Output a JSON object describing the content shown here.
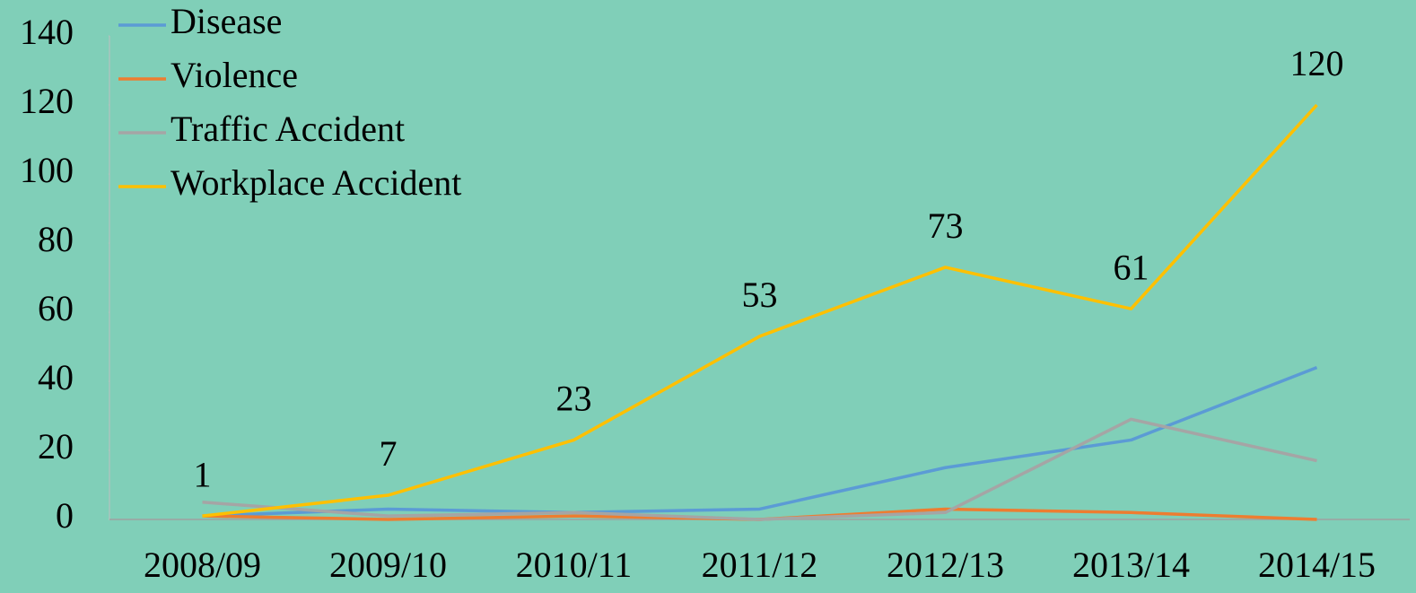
{
  "chart_data": {
    "type": "line",
    "categories": [
      "2008/09",
      "2009/10",
      "2010/11",
      "2011/12",
      "2012/13",
      "2013/14",
      "2014/15"
    ],
    "series": [
      {
        "name": "Disease",
        "color": "#5b9bd5",
        "values": [
          1,
          3,
          2,
          3,
          15,
          23,
          44
        ]
      },
      {
        "name": "Violence",
        "color": "#ed7d31",
        "values": [
          1,
          0,
          1,
          0,
          3,
          2,
          0
        ]
      },
      {
        "name": "Traffic Accident",
        "color": "#a5a5a5",
        "values": [
          5,
          1,
          2,
          0,
          2,
          29,
          17
        ]
      },
      {
        "name": "Workplace Accident",
        "color": "#ffc000",
        "values": [
          1,
          7,
          23,
          53,
          73,
          61,
          120
        ],
        "data_labels": true
      }
    ],
    "ylim": [
      0,
      140
    ],
    "yticks": [
      0,
      20,
      40,
      60,
      80,
      100,
      120,
      140
    ],
    "legend": "top-left",
    "background": "#80cfb8"
  }
}
